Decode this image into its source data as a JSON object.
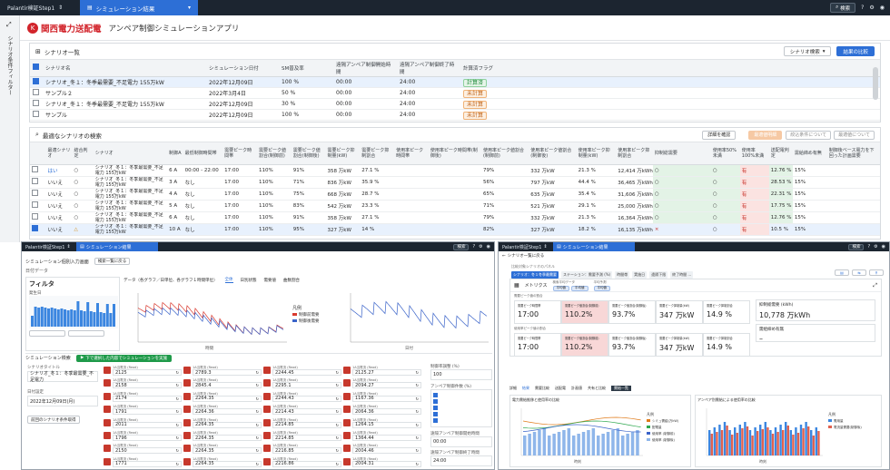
{
  "main": {
    "app_name": "Palantir検証Step1",
    "tab_title": "シミュレーション結果",
    "search_label": "検索",
    "brand": "関西電力送配電",
    "page_title": "アンペア制御シミュレーションアプリ",
    "side_label": "シナリオ条件フィルター",
    "scenario_panel": {
      "title": "シナリオ一覧",
      "dropdown": "シナリオ検索",
      "compare_button": "結果の比較",
      "headers": [
        "シナリオ名",
        "シミュレーション日付",
        "SM普及率",
        "遠隔アンペア制御開始時間",
        "遠隔アンペア制御終了時間",
        "計算済フラグ"
      ],
      "rows": [
        {
          "name": "シナリオ_冬１：冬季最需要_不足電力 155万kW",
          "date": "2022年12月09日",
          "rate": "100 %",
          "start": "00:00",
          "end": "24:00",
          "flag": "計算済",
          "ok": true,
          "checked": true
        },
        {
          "name": "サンプル２",
          "date": "2022年3月4日",
          "rate": "50 %",
          "start": "00:00",
          "end": "24:00",
          "flag": "未計算",
          "ok": false,
          "checked": false
        },
        {
          "name": "シナリオ_冬１：冬季最需要_不足電力 155万kW",
          "date": "2022年12月09日",
          "rate": "30 %",
          "start": "00:00",
          "end": "24:00",
          "flag": "未計算",
          "ok": false,
          "checked": false
        },
        {
          "name": "サンプル",
          "date": "2022年12月09日",
          "rate": "100 %",
          "start": "00:00",
          "end": "24:00",
          "flag": "未計算",
          "ok": false,
          "checked": false
        }
      ]
    },
    "best_panel": {
      "title": "最適なシナリオの検索",
      "btn_confirm": "詳細を確認",
      "btn_best": "最適値明細",
      "btn_about": "絞込条件について",
      "btn_about2": "最適値について",
      "headers": [
        "最適シナリオ",
        "結合判定",
        "シナリオ",
        "制御A",
        "最低制御時間帯",
        "需要ピーク時間帯",
        "需要ピーク値割合(制御前)",
        "需要ピーク値割合(制御後)",
        "需要ピーク抑制量(kW)",
        "需要ピーク抑制割合",
        "使用率ピーク時間帯",
        "使用率ピーク時間帯(制御後)",
        "使用率ピーク値割合(制御前)",
        "使用率ピーク値割合(制御後)",
        "使用率ピーク抑制量(kW)",
        "使用率ピーク抑制割合",
        "抑制総需要",
        "使用率50%未満",
        "使用率100%未満",
        "送配電判定",
        "需給締め有無",
        "制御後ベース電力を下回った計画需要"
      ],
      "rows": [
        {
          "best": "はい",
          "judge": "○",
          "scenario": "シナリオ_冬１：冬季最需要_不足電力 155万kW",
          "a": "6 A",
          "time": "00:00 - 22:00",
          "peak": "17:00",
          "p1": "110%",
          "p2": "91%",
          "p3": "358 万kW",
          "p4": "27.1 %",
          "u0": "",
          "u1": "",
          "u2": "79%",
          "u3": "332 万kW",
          "u4": "21.3 %",
          "total": "12,414 万kWh",
          "c1": "○",
          "c2": "○",
          "c3": "有",
          "c4": "12.76 %",
          "c5": "15%",
          "checked": false
        },
        {
          "best": "いいえ",
          "judge": "○",
          "scenario": "シナリオ_冬１：冬季最需要_不足電力 155万kW",
          "a": "3 A",
          "time": "なし",
          "peak": "17:00",
          "p1": "110%",
          "p2": "71%",
          "p3": "836 万kW",
          "p4": "35.9 %",
          "u0": "",
          "u1": "",
          "u2": "56%",
          "u3": "797 万kW",
          "u4": "44.4 %",
          "total": "36,465 万kWh",
          "c1": "○",
          "c2": "○",
          "c3": "有",
          "c4": "28.53 %",
          "c5": "15%",
          "checked": false
        },
        {
          "best": "いいえ",
          "judge": "○",
          "scenario": "シナリオ_冬１：冬季最需要_不足電力 155万kW",
          "a": "4 A",
          "time": "なし",
          "peak": "17:00",
          "p1": "110%",
          "p2": "75%",
          "p3": "668 万kW",
          "p4": "28.7 %",
          "u0": "",
          "u1": "",
          "u2": "65%",
          "u3": "635 万kW",
          "u4": "35.4 %",
          "total": "31,606 万kWh",
          "c1": "○",
          "c2": "○",
          "c3": "有",
          "c4": "22.31 %",
          "c5": "15%",
          "checked": false
        },
        {
          "best": "いいえ",
          "judge": "○",
          "scenario": "シナリオ_冬１：冬季最需要_不足電力 155万kW",
          "a": "5 A",
          "time": "なし",
          "peak": "17:00",
          "p1": "110%",
          "p2": "83%",
          "p3": "542 万kW",
          "p4": "23.3 %",
          "u0": "",
          "u1": "",
          "u2": "71%",
          "u3": "521 万kW",
          "u4": "29.1 %",
          "total": "25,000 万kWh",
          "c1": "○",
          "c2": "○",
          "c3": "有",
          "c4": "17.75 %",
          "c5": "15%",
          "checked": false
        },
        {
          "best": "いいえ",
          "judge": "○",
          "scenario": "シナリオ_冬１：冬季最需要_不足電力 155万kW",
          "a": "6 A",
          "time": "なし",
          "peak": "17:00",
          "p1": "110%",
          "p2": "91%",
          "p3": "358 万kW",
          "p4": "27.1 %",
          "u0": "",
          "u1": "",
          "u2": "79%",
          "u3": "332 万kW",
          "u4": "21.3 %",
          "total": "16,364 万kWh",
          "c1": "○",
          "c2": "○",
          "c3": "有",
          "c4": "12.76 %",
          "c5": "15%",
          "checked": false
        },
        {
          "best": "いいえ",
          "judge": "△",
          "scenario": "シナリオ_冬１：冬季最需要_不足電力 155万kW",
          "a": "10 A",
          "time": "なし",
          "peak": "17:00",
          "p1": "110%",
          "p2": "95%",
          "p3": "327 万kW",
          "p4": "14 %",
          "u0": "",
          "u1": "",
          "u2": "82%",
          "u3": "327 万kW",
          "u4": "18.2 %",
          "total": "16,135 万kWh",
          "c1": "×",
          "c2": "○",
          "c3": "有",
          "c4": "10.5 %",
          "c5": "15%",
          "checked": true
        }
      ]
    }
  },
  "bl": {
    "app_name": "Palantir検証Step1",
    "tab_title": "シミュレーション結果",
    "search_label": "検索",
    "sub1": "シミュレーション個別入力画面",
    "sub2": "検索一覧に戻る",
    "section": "日付データ",
    "filter": "フィルタ",
    "hist_label": "発生日",
    "chart_tabs": [
      "データ（各グラフ／日単位、各グラフ１時間単位）",
      "全体",
      "日別状態",
      "需要値",
      "曲数割合"
    ],
    "legend_title": "凡例",
    "legend": [
      "制御前需要",
      "制御後需要"
    ],
    "chart_xlabel": "時間",
    "chart2_xlabel": "日付",
    "sim_section": "シミュレーション検索",
    "sim_button": "下で選択した内容でシミュレーションを実施",
    "scenario_label": "シナリオタイトル",
    "scenario_value": "シナリオ_冬１：冬季最需要_不足電力",
    "date_label": "日付設定",
    "date_value": "2022年12月09日(月)",
    "cell_label": "1A当電流 (Read)",
    "reset_button": "前回のシナリオ条件取得",
    "right_label1": "制御率調整 (%)",
    "right_val1": "100",
    "right_label2": "アンペア制御件数 (%)",
    "right_label3": "遠隔アンペア制御開始時間",
    "right_val3": "00:00",
    "right_label4": "遠隔アンペア制御終了時間",
    "right_val4": "24:00",
    "col_values": [
      [
        "2125",
        "2158",
        "2174",
        "1791",
        "2011",
        "1796",
        "2150",
        "1771"
      ],
      [
        "2789.3",
        "2845.4",
        "2264.35",
        "2264.36",
        "2264.35",
        "2264.35",
        "2264.35",
        "2264.35"
      ],
      [
        "2244.45",
        "2295.1",
        "2244.43",
        "2214.43",
        "2214.85",
        "2214.85",
        "2216.85",
        "2216.86"
      ],
      [
        "2125.27",
        "2094.27",
        "1167.36",
        "2064.36",
        "1264.15",
        "1364.44",
        "2004.46",
        "2004.31"
      ]
    ]
  },
  "br": {
    "app_name": "Palantir検証Step1",
    "tab_title": "シミュレーション結果",
    "search_label": "検索",
    "breadcrumb": "シナリオ一覧に戻る",
    "hint": "比較対象シナリオのパネル",
    "chips": [
      "シナリオ：冬１冬季最需要",
      "ステーション：需要予測 (%)",
      "時間帯",
      "実施日",
      "遠隔下限",
      "終了時間 ..."
    ],
    "metrics_title": "メトリクス",
    "filter_labels": [
      "検索平均データ",
      "平均予測"
    ],
    "filter_values": [
      "平均値",
      "平均値",
      "平均値"
    ],
    "group1_title": "需要ピーク値の割合",
    "group2_title": "使用率ピーク値の割合",
    "metric_heads": [
      "需要ピーク時間帯",
      "需要ピーク値割合(制御前)",
      "需要ピーク値割合(制御後)",
      "需要ピーク抑制量(kW)",
      "需要ピーク抑制割合"
    ],
    "metric_vals": [
      "17:00",
      "110.2%",
      "93.7%",
      "347 万kW",
      "14.9 %"
    ],
    "metric_vals2": [
      "17:00",
      "110.2%",
      "93.7%",
      "347 万kW",
      "14.9 %"
    ],
    "total_label": "抑制総需要 (kWh)",
    "total_value": "10,778 万kWh",
    "extra_label": "需給締め有無",
    "extra_value": "–",
    "tabs": [
      "詳細",
      "結果",
      "需要比較",
      "送配電",
      "計画値",
      "共有と比較",
      "需給一覧"
    ],
    "chart1_title": "電力需給推移と使用率の比較",
    "chart2_title": "アンペア別需給による使用率の比較",
    "legend1": [
      "シミュ需給(万kW)",
      "配電量",
      "使用率 (制御前)",
      "使用率 (制御後)"
    ],
    "legend2": [
      "需用量",
      "電流量需要(制御後)"
    ],
    "xlabel": "時刻",
    "legend_title": "凡例"
  }
}
